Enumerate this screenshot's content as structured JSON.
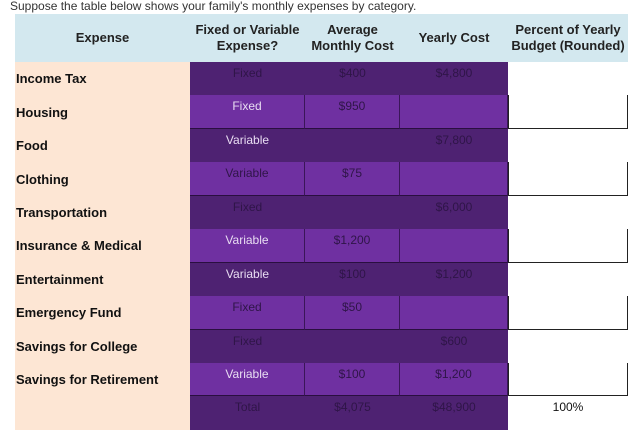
{
  "intro": "Suppose the table below shows your family's monthly expenses by category.",
  "headers": [
    "Expense",
    "Fixed or Variable Expense?",
    "Average Monthly Cost",
    "Yearly Cost",
    "Percent of Yearly Budget (Rounded)"
  ],
  "rows": [
    {
      "expense": "Income Tax",
      "type": "Fixed",
      "monthly": "$400",
      "yearly": "$4,800",
      "percent": ""
    },
    {
      "expense": "Housing",
      "type": "Fixed",
      "monthly": "$950",
      "yearly": "",
      "percent": ""
    },
    {
      "expense": "Food",
      "type": "Variable",
      "monthly": "",
      "yearly": "$7,800",
      "percent": ""
    },
    {
      "expense": "Clothing",
      "type": "Variable",
      "monthly": "$75",
      "yearly": "",
      "percent": ""
    },
    {
      "expense": "Transportation",
      "type": "Fixed",
      "monthly": "",
      "yearly": "$6,000",
      "percent": ""
    },
    {
      "expense": "Insurance & Medical",
      "type": "Variable",
      "monthly": "$1,200",
      "yearly": "",
      "percent": ""
    },
    {
      "expense": "Entertainment",
      "type": "Variable",
      "monthly": "$100",
      "yearly": "$1,200",
      "percent": ""
    },
    {
      "expense": "Emergency Fund",
      "type": "Fixed",
      "monthly": "$50",
      "yearly": "",
      "percent": ""
    },
    {
      "expense": "Savings for College",
      "type": "Fixed",
      "monthly": "",
      "yearly": "$600",
      "percent": ""
    },
    {
      "expense": "Savings for Retirement",
      "type": "Variable",
      "monthly": "$100",
      "yearly": "$1,200",
      "percent": ""
    },
    {
      "expense": "",
      "type": "Total",
      "monthly": "$4,075",
      "yearly": "$48,900",
      "percent": "100%"
    }
  ]
}
